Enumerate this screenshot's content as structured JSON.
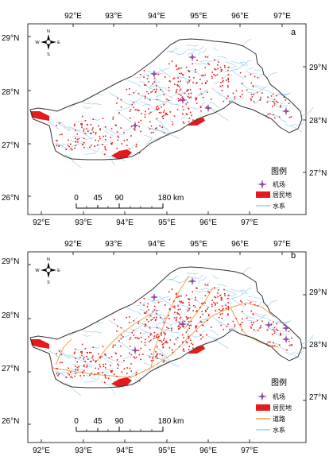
{
  "panels": [
    {
      "label": "a",
      "legend": {
        "title": "图例",
        "items": [
          {
            "key": "airport",
            "label": "机场",
            "color": "#8e4fa8",
            "icon": "airport-plus-icon"
          },
          {
            "key": "settlement",
            "label": "居民地",
            "color": "#e41a1c",
            "icon": "red-block-icon"
          },
          {
            "key": "water",
            "label": "水系",
            "color": "#9fd1ec",
            "icon": "blue-line-icon"
          }
        ]
      }
    },
    {
      "label": "b",
      "legend": {
        "title": "图例",
        "items": [
          {
            "key": "airport",
            "label": "机场",
            "color": "#8e4fa8",
            "icon": "airport-plus-icon"
          },
          {
            "key": "settlement",
            "label": "居民地",
            "color": "#e41a1c",
            "icon": "red-block-icon"
          },
          {
            "key": "road",
            "label": "道路",
            "color": "#f0a24a",
            "icon": "orange-line-icon"
          },
          {
            "key": "water",
            "label": "水系",
            "color": "#9fd1ec",
            "icon": "blue-line-icon"
          }
        ]
      }
    }
  ],
  "axes": {
    "lon_labels": [
      "92°E",
      "93°E",
      "94°E",
      "95°E",
      "96°E",
      "97°E"
    ],
    "lat_labels_left": [
      "29°N",
      "28°N",
      "27°N",
      "26°N"
    ],
    "lat_labels_right": [
      "29°N",
      "28°N",
      "27°N"
    ]
  },
  "scalebar": {
    "ticks": [
      "0",
      "45",
      "90",
      "180 km"
    ]
  },
  "compass": {
    "n": "N",
    "s": "S",
    "e": "E",
    "w": "W"
  },
  "colors": {
    "boundary": "#333333",
    "water": "#9fd1ec",
    "settlement": "#e41a1c",
    "road": "#f0a24a",
    "airport": "#8e4fa8"
  }
}
